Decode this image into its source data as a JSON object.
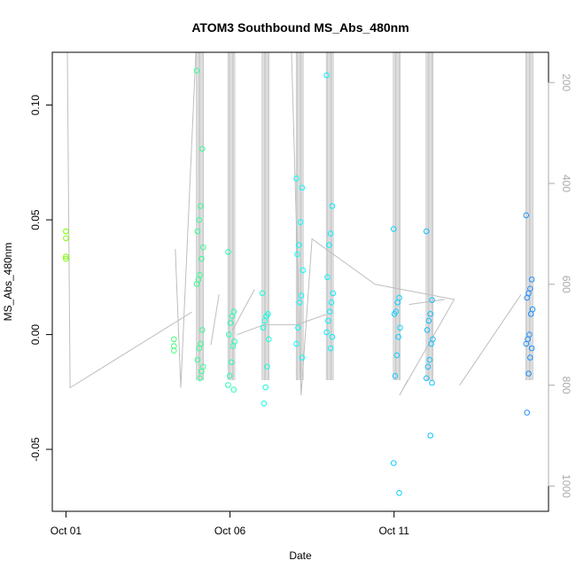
{
  "chart_data": {
    "type": "scatter",
    "title": "ATOM3 Southbound MS_Abs_480nm",
    "xlabel": "Date",
    "ylabel": "MS_Abs_480nm",
    "x_tick_labels": [
      {
        "date": "2016-10-01",
        "label": "Oct 01"
      },
      {
        "date": "2016-10-06",
        "label": "Oct 06"
      },
      {
        "date": "2016-10-11",
        "label": "Oct 11"
      }
    ],
    "y_ticks": [
      -0.05,
      0.0,
      0.05,
      0.1
    ],
    "y_tick_labels": [
      "-0.05",
      "0.00",
      "0.05",
      "0.10"
    ],
    "xlim": [
      "2016-09-30T14:00",
      "2016-10-15T17:00"
    ],
    "ylim": [
      -0.077,
      0.123
    ],
    "right_axis": {
      "label": "",
      "ticks": [
        200,
        400,
        600,
        800,
        1000
      ],
      "tick_labels": [
        "200",
        "400",
        "600",
        "800",
        "1000"
      ],
      "ylim": [
        1050,
        140
      ],
      "reversed": true
    },
    "marker": "open-circle",
    "color_scale": "time (green to blue)",
    "colors": {
      "start": "#7cfc00",
      "middle": "#00ffff",
      "end": "#1e90ff",
      "profile_line": "#bebebe"
    },
    "point_groups": [
      {
        "x": "2016-10-01T00:00",
        "y": [
          0.045,
          0.042,
          0.034,
          0.033
        ]
      },
      {
        "x": "2016-10-04T07:00",
        "y": [
          -0.002,
          -0.005,
          -0.007
        ]
      },
      {
        "x": "2016-10-05T02:00",
        "y": [
          0.115,
          0.081,
          0.056,
          0.05,
          0.045,
          0.038,
          0.033,
          0.026,
          0.024,
          0.022,
          0.002,
          -0.004,
          -0.006,
          -0.011,
          -0.014,
          -0.016,
          -0.019
        ]
      },
      {
        "x": "2016-10-06T01:00",
        "y": [
          0.036,
          0.01,
          0.008,
          0.005,
          0.0,
          -0.003,
          -0.005,
          -0.012,
          -0.018,
          -0.022,
          -0.024
        ]
      },
      {
        "x": "2016-10-07T02:00",
        "y": [
          0.018,
          0.009,
          0.008,
          0.006,
          0.003,
          -0.002,
          -0.014,
          -0.023,
          -0.03
        ]
      },
      {
        "x": "2016-10-08T03:00",
        "y": [
          0.068,
          0.064,
          0.049,
          0.039,
          0.035,
          0.028,
          0.017,
          0.014,
          0.003,
          -0.004,
          -0.01
        ]
      },
      {
        "x": "2016-10-09T01:00",
        "y": [
          0.113,
          0.056,
          0.044,
          0.039,
          0.025,
          0.018,
          0.014,
          0.01,
          0.006,
          0.001,
          -0.001,
          -0.006
        ]
      },
      {
        "x": "2016-10-11T02:00",
        "y": [
          0.046,
          0.016,
          0.014,
          0.01,
          0.009,
          0.003,
          -0.001,
          -0.009,
          -0.018,
          -0.056,
          -0.069
        ]
      },
      {
        "x": "2016-10-12T02:00",
        "y": [
          0.045,
          0.015,
          0.009,
          0.006,
          0.002,
          -0.002,
          -0.004,
          -0.011,
          -0.014,
          -0.019,
          -0.021,
          -0.044
        ]
      },
      {
        "x": "2016-10-15T03:00",
        "y": [
          0.052,
          0.024,
          0.02,
          0.018,
          0.016,
          0.011,
          0.009,
          0.0,
          -0.002,
          -0.004,
          -0.006,
          -0.01,
          -0.017,
          -0.034
        ]
      }
    ],
    "profile_line": {
      "right_axis_values": [
        [
          [
            "2016-09-30T23:00",
            140
          ],
          [
            "2016-10-01T01:00",
            140
          ],
          [
            "2016-10-01T03:00",
            805
          ],
          [
            "2016-10-04T20:00",
            655
          ]
        ],
        [
          [
            "2016-10-04T08:00",
            530
          ],
          [
            "2016-10-04T12:00",
            805
          ],
          [
            "2016-10-04T23:00",
            140
          ]
        ],
        [
          [
            "2016-10-05T10:00",
            720
          ],
          [
            "2016-10-05T16:00",
            620
          ]
        ],
        [
          [
            "2016-10-06T02:00",
            690
          ],
          [
            "2016-10-06T18:00",
            610
          ]
        ],
        [
          [
            "2016-10-06T05:00",
            700
          ],
          [
            "2016-10-07T01:00",
            680
          ],
          [
            "2016-10-08T01:00",
            680
          ],
          [
            "2016-10-08T22:00",
            660
          ]
        ],
        [
          [
            "2016-10-07T21:00",
            140
          ],
          [
            "2016-10-08T04:00",
            820
          ],
          [
            "2016-10-08T12:00",
            510
          ],
          [
            "2016-10-10T10:00",
            600
          ],
          [
            "2016-10-12T20:00",
            630
          ],
          [
            "2016-10-11T04:00",
            820
          ],
          [
            "2016-10-11T10:00",
            790
          ]
        ],
        [
          [
            "2016-10-11T11:00",
            640
          ],
          [
            "2016-10-12T13:00",
            630
          ]
        ],
        [
          [
            "2016-10-13T00:00",
            800
          ],
          [
            "2016-10-14T21:00",
            620
          ]
        ]
      ]
    }
  }
}
